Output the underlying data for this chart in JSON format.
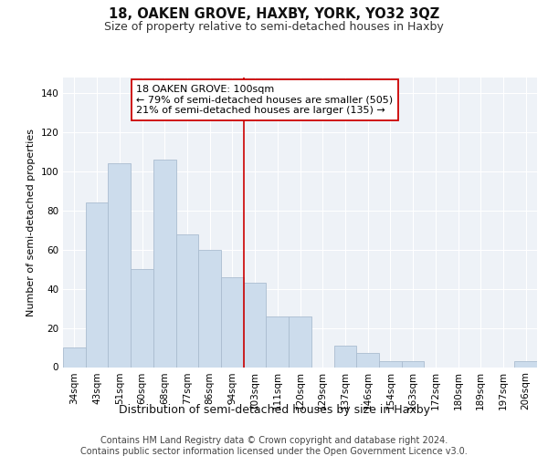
{
  "title": "18, OAKEN GROVE, HAXBY, YORK, YO32 3QZ",
  "subtitle": "Size of property relative to semi-detached houses in Haxby",
  "xlabel": "Distribution of semi-detached houses by size in Haxby",
  "ylabel": "Number of semi-detached properties",
  "categories": [
    "34sqm",
    "43sqm",
    "51sqm",
    "60sqm",
    "68sqm",
    "77sqm",
    "86sqm",
    "94sqm",
    "103sqm",
    "111sqm",
    "120sqm",
    "129sqm",
    "137sqm",
    "146sqm",
    "154sqm",
    "163sqm",
    "172sqm",
    "180sqm",
    "189sqm",
    "197sqm",
    "206sqm"
  ],
  "values": [
    10,
    84,
    104,
    50,
    106,
    68,
    60,
    46,
    43,
    26,
    26,
    0,
    11,
    7,
    3,
    3,
    0,
    0,
    0,
    0,
    3
  ],
  "bar_color": "#ccdcec",
  "bar_edgecolor": "#aabdd0",
  "vline_index": 8,
  "annotation_line1": "18 OAKEN GROVE: 100sqm",
  "annotation_line2": "← 79% of semi-detached houses are smaller (505)",
  "annotation_line3": "21% of semi-detached houses are larger (135) →",
  "annotation_box_color": "#ffffff",
  "annotation_box_edgecolor": "#cc0000",
  "vline_color": "#cc0000",
  "ylim": [
    0,
    148
  ],
  "yticks": [
    0,
    20,
    40,
    60,
    80,
    100,
    120,
    140
  ],
  "background_color": "#eef2f7",
  "grid_color": "#ffffff",
  "footer_line1": "Contains HM Land Registry data © Crown copyright and database right 2024.",
  "footer_line2": "Contains public sector information licensed under the Open Government Licence v3.0.",
  "title_fontsize": 10.5,
  "subtitle_fontsize": 9,
  "xlabel_fontsize": 9,
  "ylabel_fontsize": 8,
  "tick_fontsize": 7.5,
  "annotation_fontsize": 8,
  "footer_fontsize": 7
}
